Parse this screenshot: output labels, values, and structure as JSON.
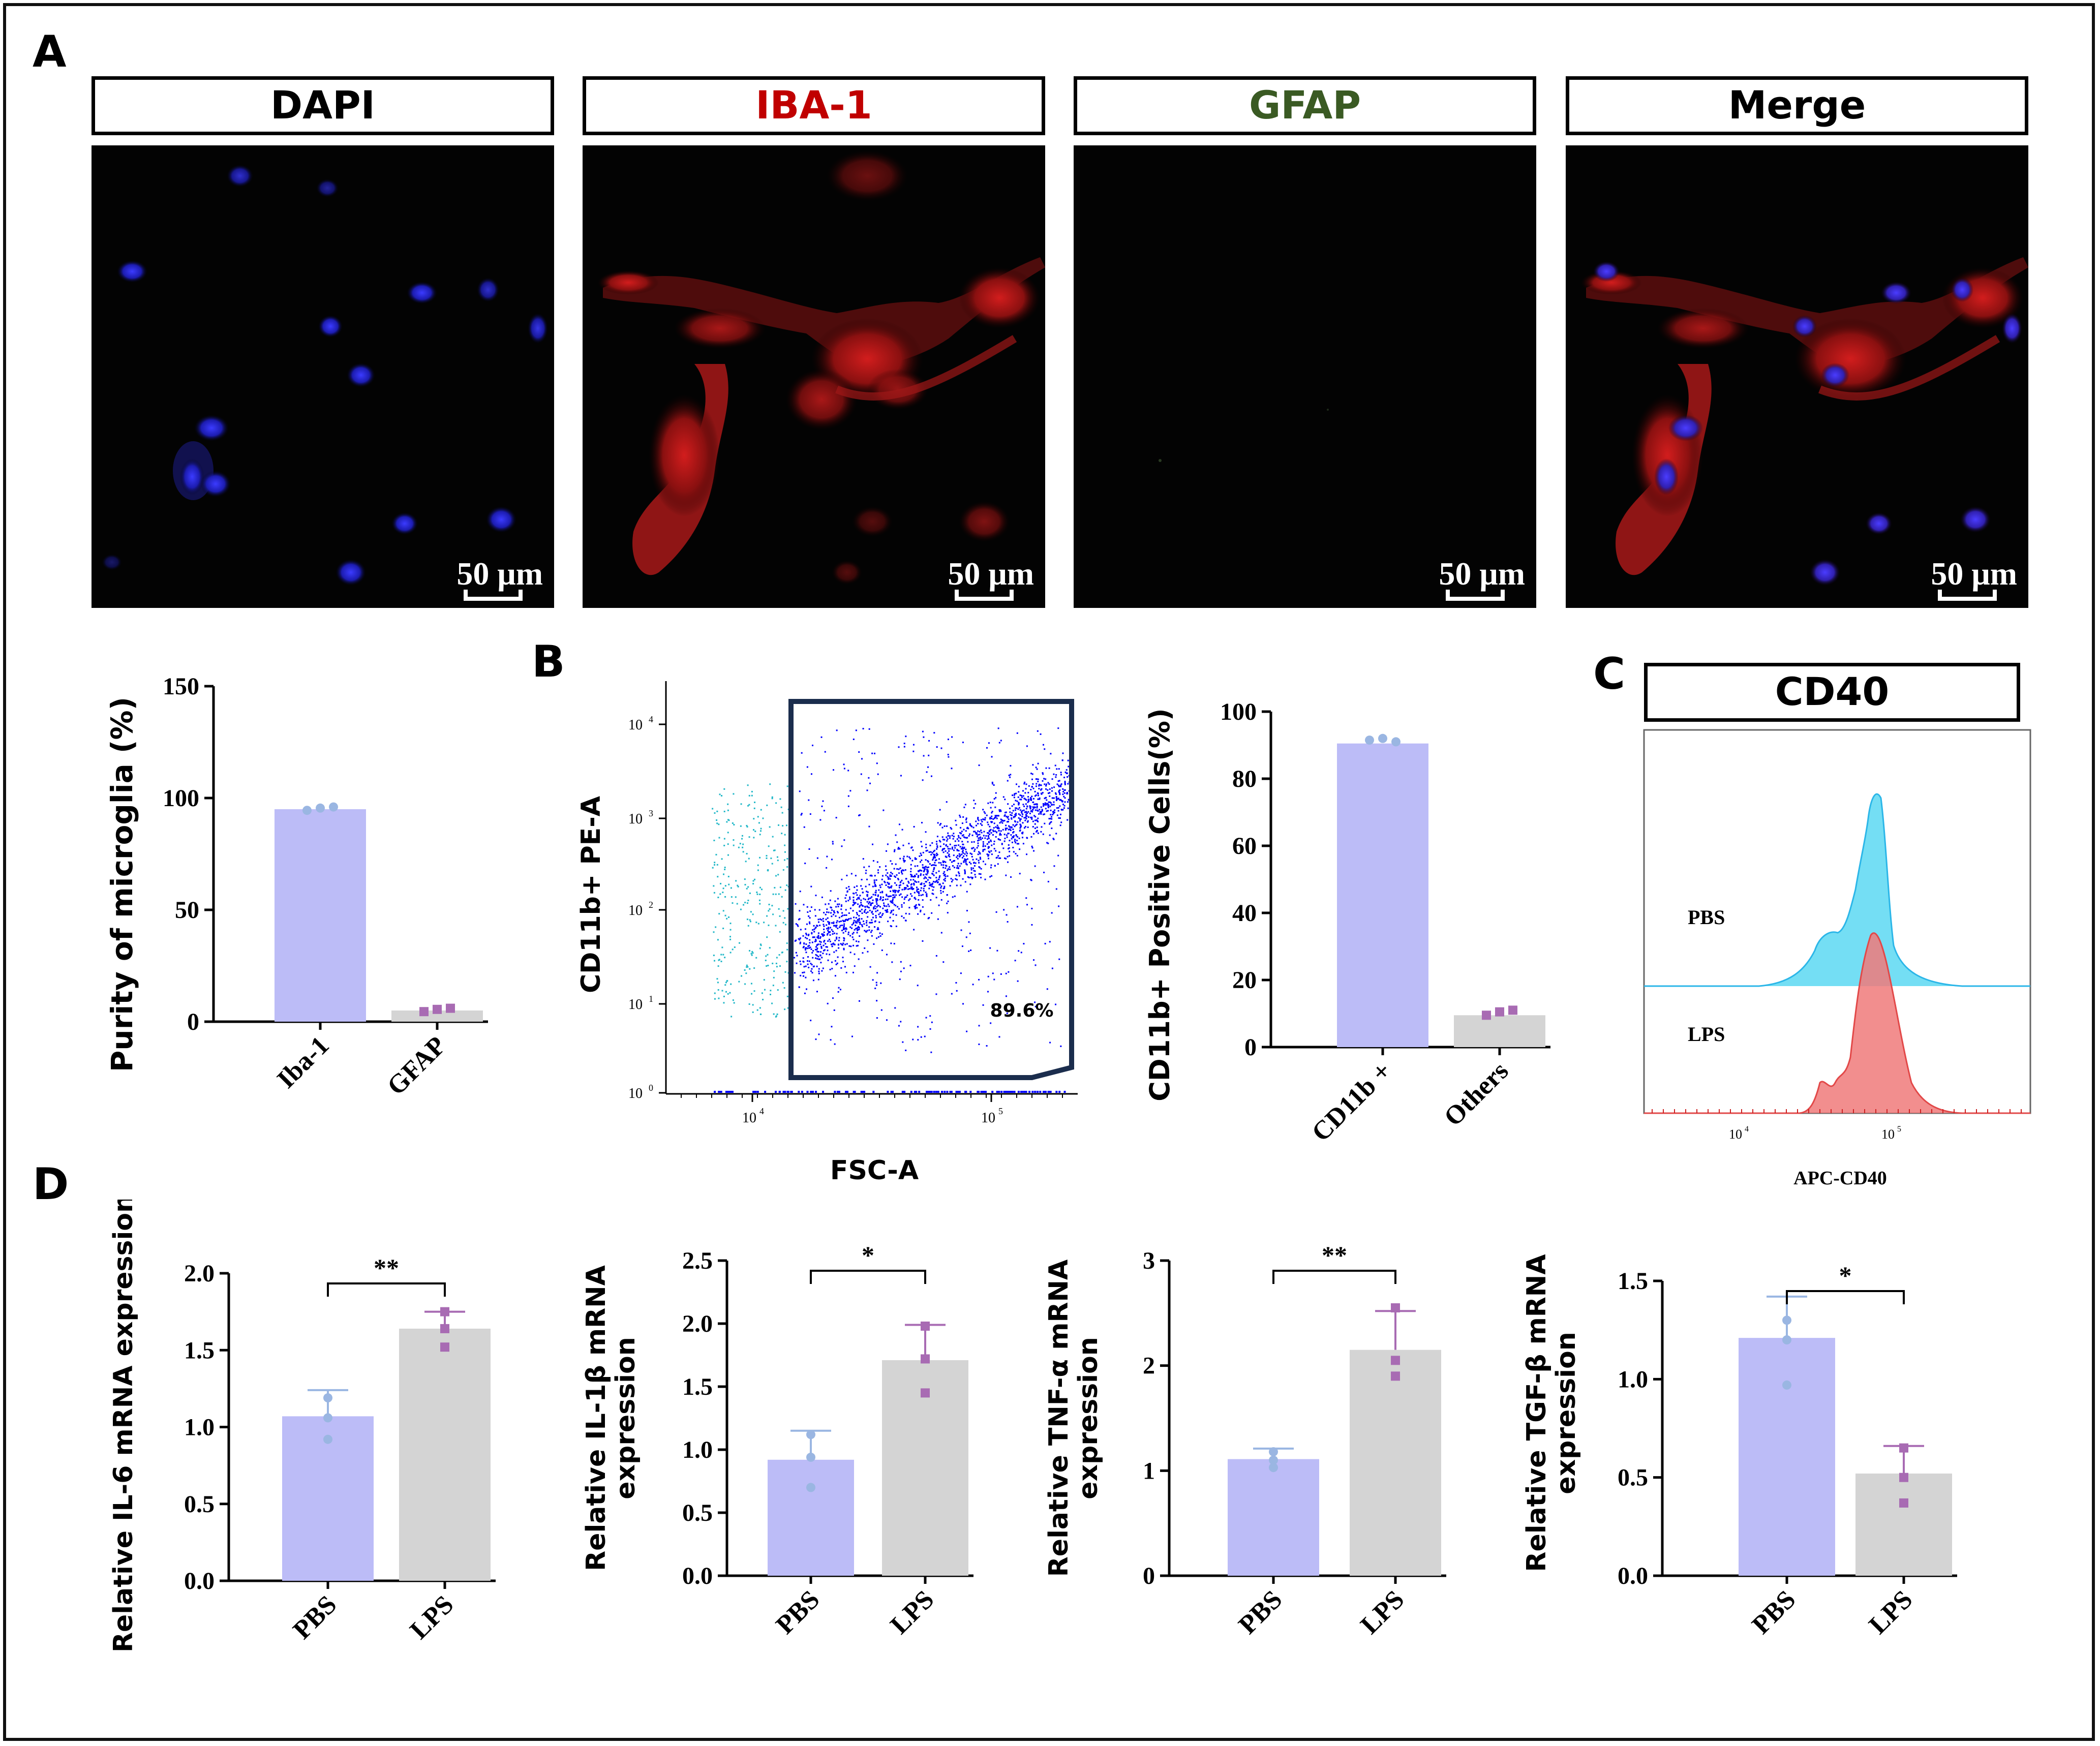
{
  "panel_labels": {
    "a": "A",
    "b": "B",
    "c": "C",
    "d": "D"
  },
  "channels": [
    {
      "name": "DAPI",
      "color": "#000000",
      "scale": "50 μm"
    },
    {
      "name": "IBA-1",
      "color": "#c00000",
      "scale": "50 μm"
    },
    {
      "name": "GFAP",
      "color": "#3a5a23",
      "scale": "50 μm"
    },
    {
      "name": "Merge",
      "color": "#000000",
      "scale": "50 μm"
    }
  ],
  "colors": {
    "pbs_bar": "#bcbcf7",
    "lps_bar": "#d4d4d4",
    "pbs_point": "#9ab6e2",
    "lps_point": "#a86bb3",
    "gate": "#1b2d4d",
    "scatter_main": "#0000ff",
    "scatter_side": "#22b8c8",
    "hist_pbs": "#5cd8f2",
    "hist_lps": "#f07a7a"
  },
  "chart_data": [
    {
      "id": "purity",
      "type": "bar",
      "categories": [
        "Iba-1",
        "GFAP"
      ],
      "values": [
        95,
        5
      ],
      "points": [
        [
          94.5,
          95.5,
          96
        ],
        [
          4.5,
          5.5,
          6
        ]
      ],
      "ylabel": "Purity of microglia (%)",
      "ylim": [
        0,
        150
      ],
      "yticks": [
        "0",
        "50",
        "100",
        "150"
      ],
      "ytick_values": [
        0,
        50,
        100,
        150
      ],
      "colors": [
        "#bcbcf7",
        "#d4d4d4"
      ]
    },
    {
      "id": "flow-scatter",
      "type": "scatter",
      "xlabel": "FSC-A",
      "ylabel": "CD11b+ PE-A",
      "xticks": [
        "10",
        "10"
      ],
      "xtick_exp": [
        "4",
        "5"
      ],
      "yticks": [
        "10",
        "10",
        "10",
        "10",
        "10"
      ],
      "ytick_exp": [
        "0",
        "1",
        "2",
        "3",
        "4"
      ],
      "gate_percent": "89.6%"
    },
    {
      "id": "cd11b",
      "type": "bar",
      "categories": [
        "CD11b +",
        "Others"
      ],
      "values": [
        90.5,
        9.5
      ],
      "points": [
        [
          91.5,
          92,
          91
        ],
        [
          9.5,
          10.5,
          11
        ]
      ],
      "ylabel": "CD11b+ Positive Cells(%)",
      "ylim": [
        0,
        100
      ],
      "yticks": [
        "0",
        "20",
        "40",
        "60",
        "80",
        "100"
      ],
      "ytick_values": [
        0,
        20,
        40,
        60,
        80,
        100
      ],
      "colors": [
        "#bcbcf7",
        "#d4d4d4"
      ]
    },
    {
      "id": "cd40",
      "type": "area",
      "title": "CD40",
      "xlabel": "APC-CD40",
      "series": [
        {
          "name": "PBS"
        },
        {
          "name": "LPS"
        }
      ],
      "xticks": [
        "10",
        "10"
      ],
      "xtick_exp": [
        "4",
        "5"
      ]
    },
    {
      "id": "il6",
      "type": "bar",
      "categories": [
        "PBS",
        "LPS"
      ],
      "values": [
        1.07,
        1.64
      ],
      "errors": [
        0.17,
        0.11
      ],
      "points": [
        [
          0.92,
          1.06,
          1.19
        ],
        [
          1.52,
          1.64,
          1.75
        ]
      ],
      "ylabel_lines": [
        "Relative IL-6 mRNA expression"
      ],
      "ylim": [
        0,
        2.0
      ],
      "yticks": [
        "0.0",
        "0.5",
        "1.0",
        "1.5",
        "2.0"
      ],
      "ytick_values": [
        0,
        0.5,
        1.0,
        1.5,
        2.0
      ],
      "significance": "**",
      "colors": [
        "#bcbcf7",
        "#d4d4d4"
      ]
    },
    {
      "id": "il1b",
      "type": "bar",
      "categories": [
        "PBS",
        "LPS"
      ],
      "values": [
        0.92,
        1.71
      ],
      "errors": [
        0.23,
        0.28
      ],
      "points": [
        [
          0.7,
          0.94,
          1.12
        ],
        [
          1.45,
          1.72,
          1.98
        ]
      ],
      "ylabel_lines": [
        "Relative IL-1β mRNA",
        "expression"
      ],
      "ylim": [
        0,
        2.5
      ],
      "yticks": [
        "0.0",
        "0.5",
        "1.0",
        "1.5",
        "2.0",
        "2.5"
      ],
      "ytick_values": [
        0,
        0.5,
        1.0,
        1.5,
        2.0,
        2.5
      ],
      "significance": "*",
      "colors": [
        "#bcbcf7",
        "#d4d4d4"
      ]
    },
    {
      "id": "tnfa",
      "type": "bar",
      "categories": [
        "PBS",
        "LPS"
      ],
      "values": [
        1.11,
        2.15
      ],
      "errors": [
        0.1,
        0.37
      ],
      "points": [
        [
          1.03,
          1.1,
          1.18
        ],
        [
          1.9,
          2.05,
          2.55
        ]
      ],
      "ylabel_lines": [
        "Relative TNF-α mRNA",
        "expression"
      ],
      "ylim": [
        0,
        3
      ],
      "yticks": [
        "0",
        "1",
        "2",
        "3"
      ],
      "ytick_values": [
        0,
        1,
        2,
        3
      ],
      "significance": "**",
      "colors": [
        "#bcbcf7",
        "#d4d4d4"
      ]
    },
    {
      "id": "tgfb",
      "type": "bar",
      "categories": [
        "PBS",
        "LPS"
      ],
      "values": [
        1.21,
        0.52
      ],
      "errors": [
        0.21,
        0.14
      ],
      "points": [
        [
          0.97,
          1.2,
          1.3
        ],
        [
          0.37,
          0.5,
          0.65
        ]
      ],
      "ylabel_lines": [
        "Relative TGF-β mRNA",
        "expression"
      ],
      "ylim": [
        0,
        1.5
      ],
      "yticks": [
        "0.0",
        "0.5",
        "1.0",
        "1.5"
      ],
      "ytick_values": [
        0,
        0.5,
        1.0,
        1.5
      ],
      "significance": "*",
      "colors": [
        "#bcbcf7",
        "#d4d4d4"
      ]
    }
  ]
}
